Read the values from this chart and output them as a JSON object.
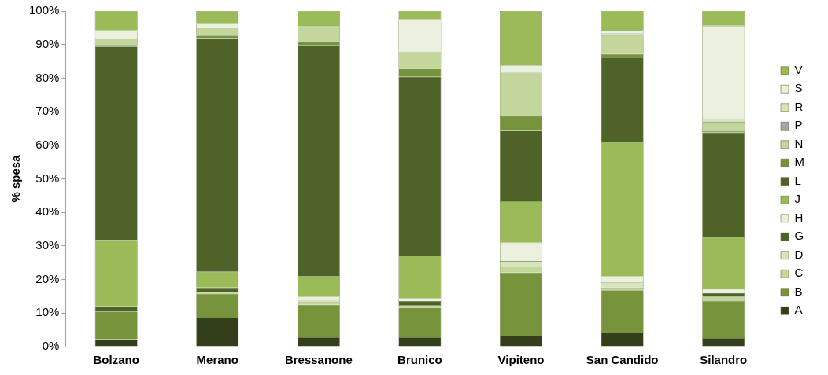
{
  "chart_data": {
    "type": "bar",
    "stacked": true,
    "ylabel": "% spesa",
    "categories": [
      "Bolzano",
      "Merano",
      "Bressanone",
      "Brunico",
      "Vipiteno",
      "San Candido",
      "Silandro"
    ],
    "series": [
      {
        "name": "A",
        "color": "#333f1a",
        "values": [
          2.2,
          8.6,
          2.8,
          2.8,
          3.2,
          4.2,
          2.6
        ]
      },
      {
        "name": "B",
        "color": "#77933c",
        "values": [
          8.3,
          7.2,
          9.7,
          8.8,
          18.9,
          12.6,
          11.0
        ]
      },
      {
        "name": "C",
        "color": "#c3d69b",
        "values": [
          0,
          0.6,
          0.8,
          0.8,
          1.7,
          0.8,
          1.3
        ]
      },
      {
        "name": "D",
        "color": "#d7e4bd",
        "values": [
          0,
          0,
          0.8,
          0,
          1.7,
          1.6,
          0
        ]
      },
      {
        "name": "G",
        "color": "#4f6228",
        "values": [
          1.5,
          1.2,
          0,
          1.2,
          0,
          0,
          1.1
        ]
      },
      {
        "name": "H",
        "color": "#ebf1de",
        "values": [
          0,
          0,
          0.8,
          0.8,
          5.5,
          1.9,
          1.2
        ]
      },
      {
        "name": "J",
        "color": "#9bbb59",
        "values": [
          19.8,
          4.7,
          6.1,
          12.7,
          12.3,
          39.8,
          15.4
        ]
      },
      {
        "name": "L",
        "color": "#4f6228",
        "values": [
          57.6,
          69.6,
          68.9,
          53.3,
          21.2,
          25.3,
          31.2
        ]
      },
      {
        "name": "M",
        "color": "#77933c",
        "values": [
          0.5,
          0.8,
          1.1,
          2.4,
          4.1,
          1.0,
          0.4
        ]
      },
      {
        "name": "N",
        "color": "#c3d69b",
        "values": [
          1.9,
          2.4,
          4.4,
          5.1,
          13.0,
          5.5,
          2.7
        ]
      },
      {
        "name": "P",
        "color": "#a6a6a6",
        "values": [
          0,
          0,
          0,
          0,
          0,
          0,
          0
        ]
      },
      {
        "name": "R",
        "color": "#d7e4bd",
        "values": [
          0,
          0,
          0,
          0,
          0,
          0.6,
          0.9
        ]
      },
      {
        "name": "S",
        "color": "#ebf1de",
        "values": [
          2.4,
          1.2,
          0,
          9.7,
          2.2,
          1.0,
          27.8
        ]
      },
      {
        "name": "V",
        "color": "#9bbb59",
        "values": [
          5.8,
          3.7,
          4.6,
          2.4,
          16.2,
          5.7,
          4.4
        ]
      }
    ],
    "ylim": [
      0,
      100
    ],
    "yticks": [
      {
        "value": 0,
        "label": "0%"
      },
      {
        "value": 10,
        "label": "10%"
      },
      {
        "value": 20,
        "label": "20%"
      },
      {
        "value": 30,
        "label": "30%"
      },
      {
        "value": 40,
        "label": "40%"
      },
      {
        "value": 50,
        "label": "50%"
      },
      {
        "value": 60,
        "label": "60%"
      },
      {
        "value": 70,
        "label": "70%"
      },
      {
        "value": 80,
        "label": "80%"
      },
      {
        "value": 90,
        "label": "90%"
      },
      {
        "value": 100,
        "label": "100%"
      }
    ],
    "grid": false,
    "legend": "right"
  }
}
